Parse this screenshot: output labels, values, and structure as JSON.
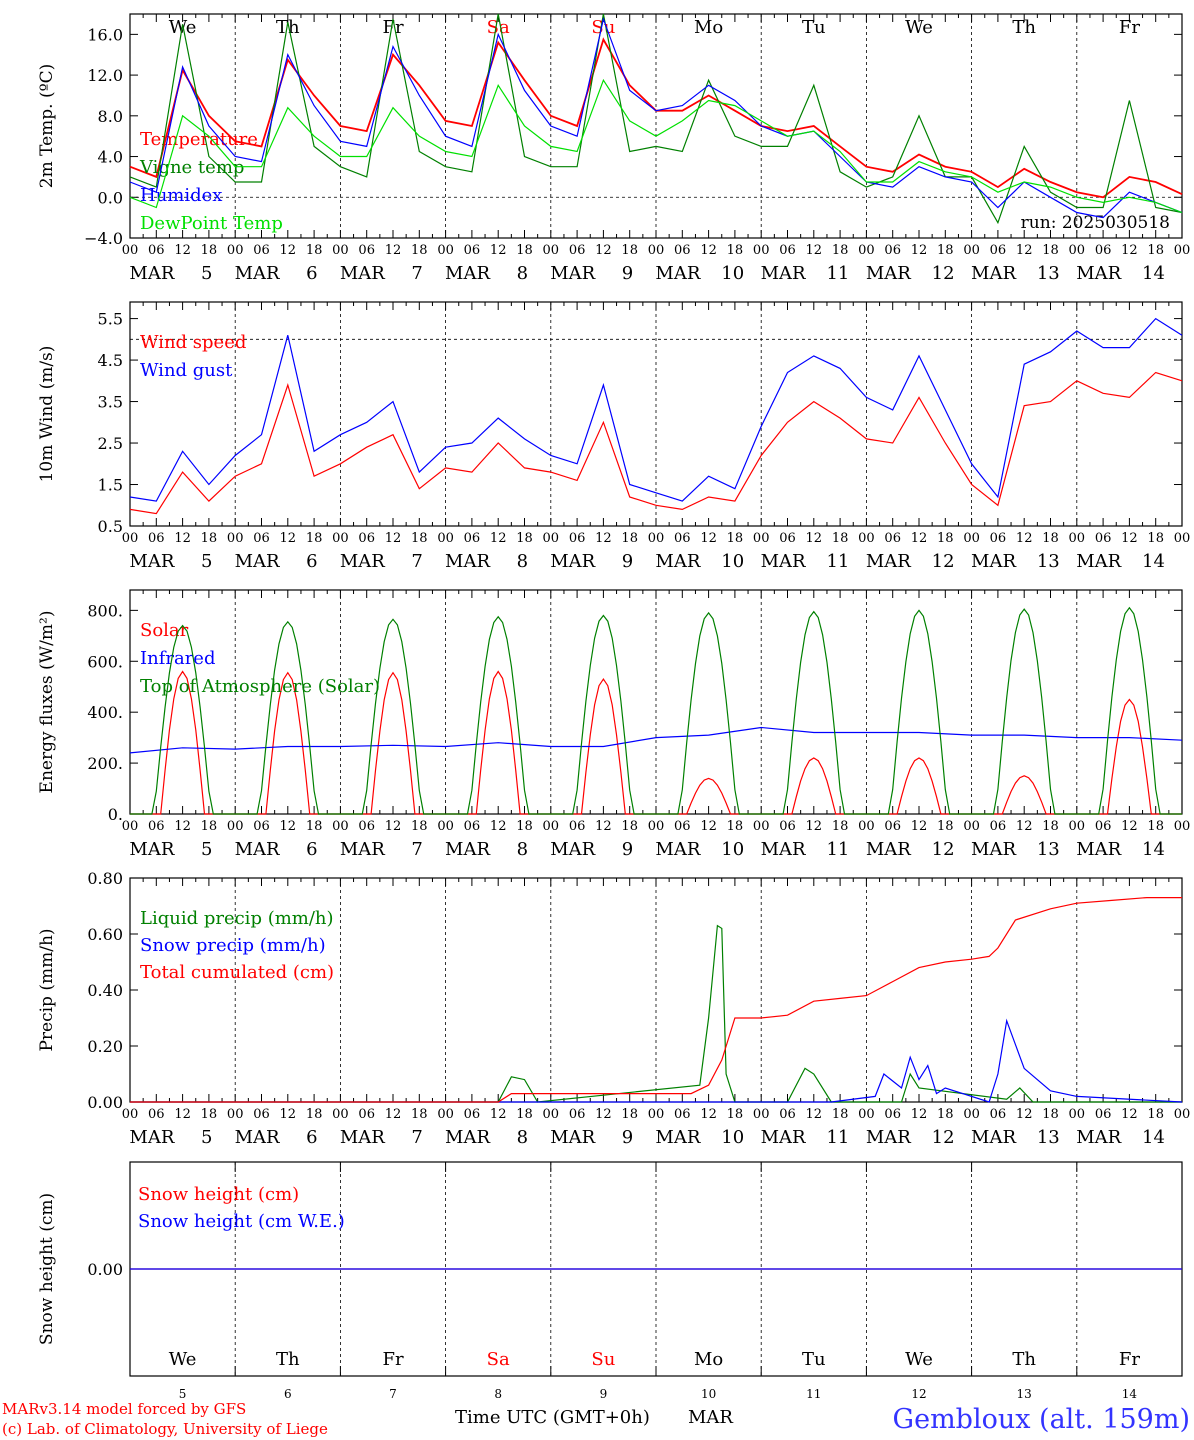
{
  "meta": {
    "model": "MARv3.14 model forced by GFS",
    "lab": "(c) Lab. of Climatology, University of Liege",
    "location": "Gembloux (alt. 159m)",
    "time_axis_label": "Time UTC (GMT+0h)",
    "month_label": "MAR",
    "run_label": "run: 2025030518"
  },
  "days": [
    {
      "abbr": "We",
      "num": "5",
      "weekend": false
    },
    {
      "abbr": "Th",
      "num": "6",
      "weekend": false
    },
    {
      "abbr": "Fr",
      "num": "7",
      "weekend": false
    },
    {
      "abbr": "Sa",
      "num": "8",
      "weekend": true
    },
    {
      "abbr": "Su",
      "num": "9",
      "weekend": true
    },
    {
      "abbr": "Mo",
      "num": "10",
      "weekend": false
    },
    {
      "abbr": "Tu",
      "num": "11",
      "weekend": false
    },
    {
      "abbr": "We",
      "num": "12",
      "weekend": false
    },
    {
      "abbr": "Th",
      "num": "13",
      "weekend": false
    },
    {
      "abbr": "Fr",
      "num": "14",
      "weekend": false
    }
  ],
  "hour_ticks": [
    "00",
    "06",
    "12",
    "18"
  ],
  "end_tick": "00",
  "colors": {
    "red": "#ff0000",
    "green": "#008000",
    "blue": "#0000ff",
    "lightgreen": "#00e000",
    "weekend": "#ff0000",
    "location": "#3333ff"
  },
  "chart_data": [
    {
      "id": "temp",
      "type": "line",
      "ylabel": "2m Temp. (ºC)",
      "ylim": [
        -4,
        18
      ],
      "yticks": [
        -4,
        0,
        4,
        8,
        12,
        16
      ],
      "tick_labels": [
        "−4.0",
        "0.0",
        "4.0",
        "8.0",
        "12.0",
        "16.0"
      ],
      "ref_lines": [
        0
      ],
      "show_day_names_top": true,
      "x_hours": [
        0,
        6,
        12,
        18,
        24,
        30,
        36,
        42,
        48,
        54,
        60,
        66,
        72,
        78,
        84,
        90,
        96,
        102,
        108,
        114,
        120,
        126,
        132,
        138,
        144,
        150,
        156,
        162,
        168,
        174,
        180,
        186,
        192,
        198,
        204,
        210,
        216,
        222,
        228,
        234,
        240
      ],
      "series": [
        {
          "name": "Temperature",
          "color": "red",
          "values": [
            3.0,
            2.0,
            12.5,
            8.0,
            5.5,
            5.0,
            13.5,
            10.0,
            7.0,
            6.5,
            14.0,
            11.0,
            7.5,
            7.0,
            15.2,
            11.5,
            8.0,
            7.0,
            15.5,
            11.0,
            8.5,
            8.5,
            10.0,
            8.5,
            7.0,
            6.5,
            7.0,
            5.0,
            3.0,
            2.5,
            4.2,
            3.0,
            2.5,
            1.0,
            2.8,
            1.5,
            0.5,
            0.0,
            2.0,
            1.5,
            0.3
          ]
        },
        {
          "name": "Vigne temp",
          "color": "green",
          "values": [
            2.0,
            1.0,
            17.0,
            4.0,
            1.5,
            1.5,
            17.2,
            5.0,
            3.0,
            2.0,
            17.5,
            4.5,
            3.0,
            2.5,
            18.0,
            4.0,
            3.0,
            3.0,
            18.0,
            4.5,
            5.0,
            4.5,
            11.5,
            6.0,
            5.0,
            5.0,
            11.0,
            2.5,
            1.0,
            2.0,
            8.0,
            2.0,
            2.0,
            -2.5,
            5.0,
            0.5,
            -1.0,
            -1.0,
            9.5,
            -1.0,
            -1.5
          ]
        },
        {
          "name": "Humidex",
          "color": "blue",
          "values": [
            1.5,
            0.5,
            12.8,
            7.0,
            4.0,
            3.5,
            14.0,
            9.0,
            5.5,
            5.0,
            14.8,
            10.0,
            6.0,
            5.0,
            16.0,
            10.5,
            7.0,
            6.0,
            17.5,
            10.5,
            8.5,
            9.0,
            11.0,
            9.5,
            7.0,
            6.0,
            6.5,
            4.0,
            1.5,
            1.0,
            3.0,
            2.0,
            1.5,
            -1.0,
            1.5,
            0.0,
            -1.5,
            -2.0,
            0.5,
            -0.5,
            -1.5
          ]
        },
        {
          "name": "DewPoint Temp",
          "color": "lightgreen",
          "values": [
            0.0,
            -1.0,
            8.0,
            6.0,
            3.0,
            3.0,
            8.8,
            6.0,
            4.0,
            4.0,
            8.8,
            6.0,
            4.5,
            4.0,
            11.0,
            7.0,
            5.0,
            4.5,
            11.5,
            7.5,
            6.0,
            7.5,
            9.5,
            9.0,
            7.5,
            6.0,
            6.5,
            4.5,
            1.5,
            1.5,
            3.5,
            2.5,
            2.0,
            0.5,
            1.5,
            1.0,
            0.0,
            -0.5,
            0.0,
            -0.5,
            -1.5
          ]
        }
      ]
    },
    {
      "id": "wind",
      "type": "line",
      "ylabel": "10m Wind (m/s)",
      "ylim": [
        0.5,
        5.9
      ],
      "yticks": [
        0.5,
        1.5,
        2.5,
        3.5,
        4.5,
        5.5
      ],
      "tick_labels": [
        "0.5",
        "1.5",
        "2.5",
        "3.5",
        "4.5",
        "5.5"
      ],
      "ref_lines": [
        5.0
      ],
      "x_hours": [
        0,
        6,
        12,
        18,
        24,
        30,
        36,
        42,
        48,
        54,
        60,
        66,
        72,
        78,
        84,
        90,
        96,
        102,
        108,
        114,
        120,
        126,
        132,
        138,
        144,
        150,
        156,
        162,
        168,
        174,
        180,
        186,
        192,
        198,
        204,
        210,
        216,
        222,
        228,
        234,
        240
      ],
      "series": [
        {
          "name": "Wind speed",
          "color": "red",
          "values": [
            0.9,
            0.8,
            1.8,
            1.1,
            1.7,
            2.0,
            3.9,
            1.7,
            2.0,
            2.4,
            2.7,
            1.4,
            1.9,
            1.8,
            2.5,
            1.9,
            1.8,
            1.6,
            3.0,
            1.2,
            1.0,
            0.9,
            1.2,
            1.1,
            2.2,
            3.0,
            3.5,
            3.1,
            2.6,
            2.5,
            3.6,
            2.5,
            1.5,
            1.0,
            3.4,
            3.5,
            4.0,
            3.7,
            3.6,
            4.2,
            4.0
          ]
        },
        {
          "name": "Wind gust",
          "color": "blue",
          "values": [
            1.2,
            1.1,
            2.3,
            1.5,
            2.2,
            2.7,
            5.1,
            2.3,
            2.7,
            3.0,
            3.5,
            1.8,
            2.4,
            2.5,
            3.1,
            2.6,
            2.2,
            2.0,
            3.9,
            1.5,
            1.3,
            1.1,
            1.7,
            1.4,
            2.9,
            4.2,
            4.6,
            4.3,
            3.6,
            3.3,
            4.6,
            3.3,
            2.0,
            1.2,
            4.4,
            4.7,
            5.2,
            4.8,
            4.8,
            5.5,
            5.1
          ]
        }
      ]
    },
    {
      "id": "energy",
      "type": "line",
      "ylabel": "Energy fluxes (W/m²)",
      "ylim": [
        0,
        880
      ],
      "yticks": [
        0,
        200,
        400,
        600,
        800
      ],
      "tick_labels": [
        "0.",
        "200.",
        "400.",
        "600.",
        "800."
      ],
      "ref_lines": [],
      "series": [
        {
          "name": "Solar",
          "color": "red",
          "daily_peaks": [
            560,
            555,
            555,
            560,
            530,
            140,
            220,
            220,
            150,
            450
          ]
        },
        {
          "name": "Infrared",
          "color": "blue",
          "x_hours": [
            0,
            12,
            24,
            36,
            48,
            60,
            72,
            84,
            96,
            108,
            120,
            132,
            144,
            156,
            168,
            180,
            192,
            204,
            216,
            228,
            240
          ],
          "values": [
            240,
            260,
            255,
            265,
            265,
            270,
            265,
            280,
            265,
            265,
            300,
            310,
            340,
            320,
            320,
            320,
            310,
            310,
            300,
            300,
            290
          ]
        },
        {
          "name": "Top of Atmosphere (Solar)",
          "color": "green",
          "daily_peaks": [
            740,
            755,
            765,
            775,
            780,
            790,
            795,
            800,
            805,
            810
          ]
        }
      ]
    },
    {
      "id": "precip",
      "type": "line",
      "ylabel": "Precip (mm/h)",
      "ylim": [
        0,
        0.8
      ],
      "yticks": [
        0,
        0.2,
        0.4,
        0.6,
        0.8
      ],
      "tick_labels": [
        "0.00",
        "0.20",
        "0.40",
        "0.60",
        "0.80"
      ],
      "ref_lines": [],
      "series": [
        {
          "name": "Liquid precip (mm/h)",
          "color": "green",
          "x_hours": [
            0,
            84,
            87,
            90,
            93,
            130,
            132,
            134,
            135,
            136,
            138,
            150,
            154,
            156,
            160,
            176,
            178,
            180,
            200,
            203,
            206,
            240
          ],
          "values": [
            0,
            0,
            0.09,
            0.08,
            0,
            0.06,
            0.3,
            0.63,
            0.62,
            0.1,
            0,
            0,
            0.12,
            0.1,
            0,
            0,
            0.1,
            0.05,
            0.01,
            0.05,
            0,
            0
          ]
        },
        {
          "name": "Snow precip (mm/h)",
          "color": "blue",
          "x_hours": [
            0,
            150,
            160,
            170,
            172,
            176,
            178,
            180,
            182,
            184,
            186,
            196,
            198,
            200,
            204,
            210,
            216,
            240
          ],
          "values": [
            0,
            0,
            0,
            0.02,
            0.1,
            0.05,
            0.16,
            0.08,
            0.13,
            0.03,
            0.05,
            0,
            0.1,
            0.29,
            0.12,
            0.04,
            0.02,
            0
          ]
        },
        {
          "name": "Total cumulated (cm)",
          "color": "red",
          "x_hours": [
            0,
            84,
            87,
            128,
            132,
            135,
            138,
            144,
            150,
            156,
            162,
            168,
            174,
            180,
            186,
            192,
            196,
            198,
            202,
            210,
            216,
            224,
            232,
            240
          ],
          "values": [
            0,
            0,
            0.03,
            0.03,
            0.06,
            0.15,
            0.3,
            0.3,
            0.31,
            0.36,
            0.37,
            0.38,
            0.43,
            0.48,
            0.5,
            0.51,
            0.52,
            0.55,
            0.65,
            0.69,
            0.71,
            0.72,
            0.73,
            0.73
          ]
        }
      ]
    },
    {
      "id": "snow",
      "type": "line",
      "ylabel": "Snow height (cm)",
      "ylim": [
        -1,
        1
      ],
      "yticks": [
        0
      ],
      "tick_labels": [
        "0.00"
      ],
      "ref_lines": [],
      "show_day_names_bottom": true,
      "x_hours": [
        0,
        240
      ],
      "series": [
        {
          "name": "Snow height (cm)",
          "color": "red",
          "values": [
            0,
            0
          ]
        },
        {
          "name": "Snow height (cm W.E.)",
          "color": "blue",
          "values": [
            0,
            0
          ]
        }
      ]
    }
  ]
}
